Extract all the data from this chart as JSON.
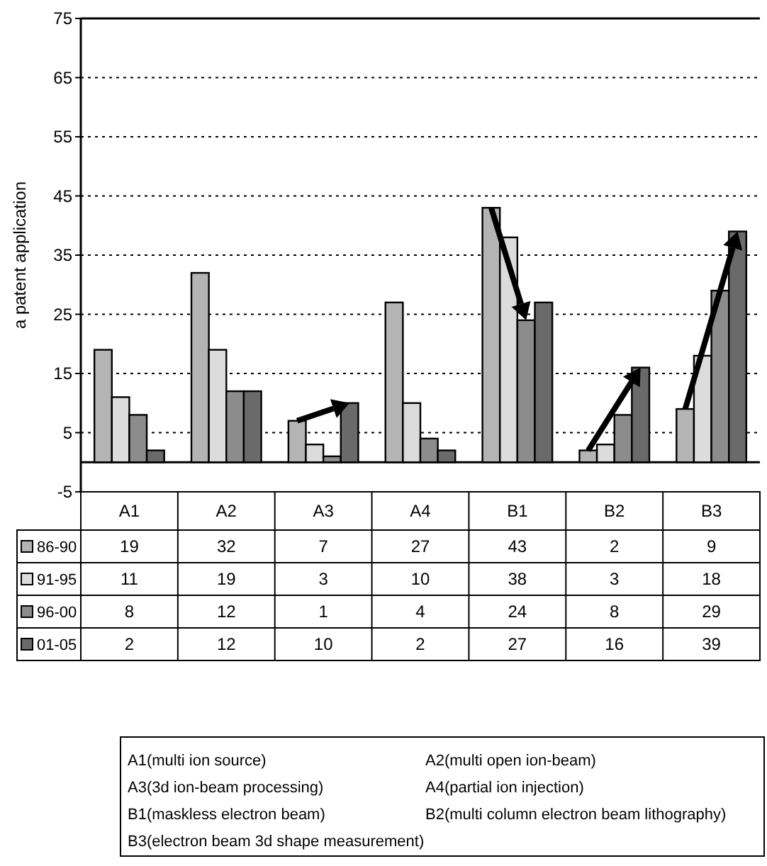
{
  "chart_data": {
    "type": "bar",
    "ylabel": "a patent application",
    "categories": [
      "A1",
      "A2",
      "A3",
      "A4",
      "B1",
      "B2",
      "B3"
    ],
    "series": [
      {
        "name": "86-90",
        "color": "#b4b4b4",
        "values": [
          19,
          32,
          7,
          27,
          43,
          2,
          9
        ]
      },
      {
        "name": "91-95",
        "color": "#dcdcdc",
        "values": [
          11,
          19,
          3,
          10,
          38,
          3,
          18
        ]
      },
      {
        "name": "96-00",
        "color": "#8c8c8c",
        "values": [
          8,
          12,
          1,
          4,
          24,
          8,
          29
        ]
      },
      {
        "name": "01-05",
        "color": "#6a6a6a",
        "values": [
          2,
          12,
          10,
          2,
          27,
          16,
          39
        ]
      }
    ],
    "ylim": [
      -5,
      75
    ],
    "yticks": [
      -5,
      5,
      15,
      25,
      35,
      45,
      55,
      65,
      75
    ],
    "grid": "y",
    "data_labels": true,
    "legend": "bottom",
    "annotations": [
      "A1(multi ion source)",
      "A2(multi open ion-beam)",
      "A3(3d ion-beam processing)",
      "A4(partial ion injection)",
      "B1(maskless electron beam)",
      "B2(multi column electron beam lithography)",
      "B3(electron beam 3d shape measurement)"
    ]
  }
}
